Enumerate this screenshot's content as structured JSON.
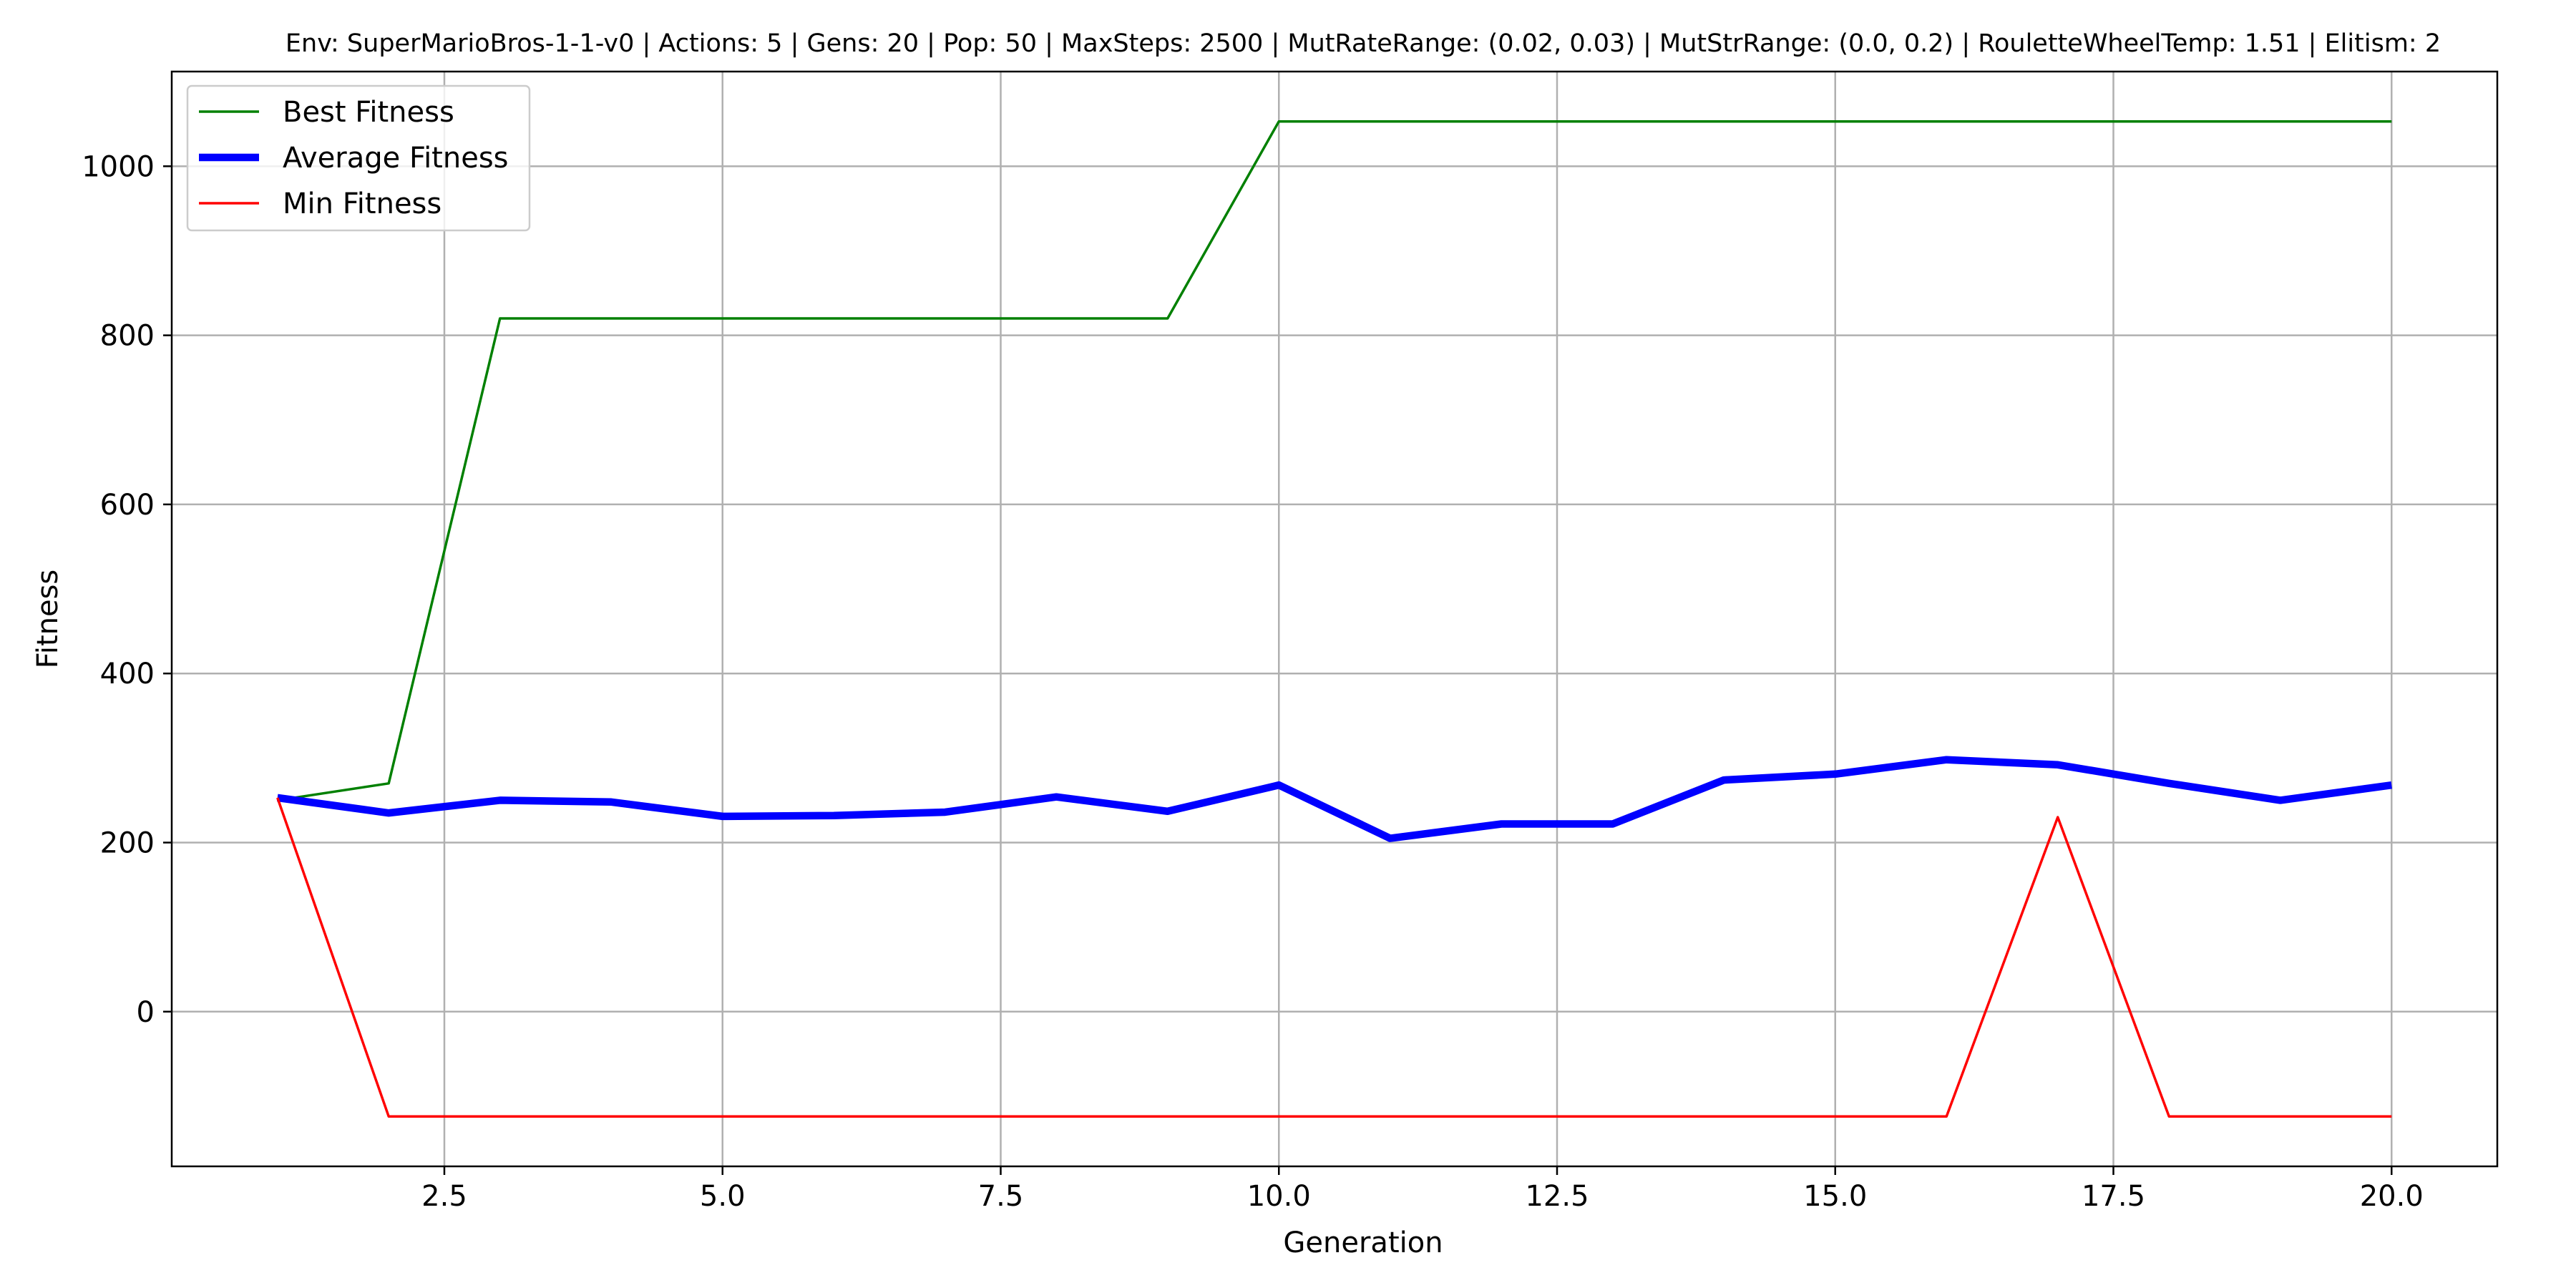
{
  "chart_data": {
    "type": "line",
    "title": "Env: SuperMarioBros-1-1-v0 | Actions: 5 | Gens: 20 | Pop: 50 | MaxSteps: 2500 | MutRateRange: (0.02, 0.03) | MutStrRange: (0.0, 0.2) | RouletteWheelTemp: 1.51 | Elitism: 2",
    "xlabel": "Generation",
    "ylabel": "Fitness",
    "xlim": [
      0.05,
      20.95
    ],
    "ylim": [
      -183,
      1112
    ],
    "grid": true,
    "legend_position": "top-left",
    "xticks": [
      {
        "value": 2.5,
        "label": "2.5"
      },
      {
        "value": 5.0,
        "label": "5.0"
      },
      {
        "value": 7.5,
        "label": "7.5"
      },
      {
        "value": 10.0,
        "label": "10.0"
      },
      {
        "value": 12.5,
        "label": "12.5"
      },
      {
        "value": 15.0,
        "label": "15.0"
      },
      {
        "value": 17.5,
        "label": "17.5"
      },
      {
        "value": 20.0,
        "label": "20.0"
      }
    ],
    "yticks": [
      {
        "value": 0,
        "label": "0"
      },
      {
        "value": 200,
        "label": "200"
      },
      {
        "value": 400,
        "label": "400"
      },
      {
        "value": 600,
        "label": "600"
      },
      {
        "value": 800,
        "label": "800"
      },
      {
        "value": 1000,
        "label": "1000"
      }
    ],
    "x": [
      1,
      2,
      3,
      4,
      5,
      6,
      7,
      8,
      9,
      10,
      11,
      12,
      13,
      14,
      15,
      16,
      17,
      18,
      19,
      20
    ],
    "series": [
      {
        "name": "Best Fitness",
        "color": "#008000",
        "width": 3.5,
        "values": [
          250,
          270,
          820,
          820,
          820,
          820,
          820,
          820,
          820,
          1053,
          1053,
          1053,
          1053,
          1053,
          1053,
          1053,
          1053,
          1053,
          1053,
          1053
        ]
      },
      {
        "name": "Average Fitness",
        "color": "#0000ff",
        "width": 10.5,
        "values": [
          253,
          235,
          250,
          248,
          231,
          232,
          236,
          254,
          237,
          268,
          205,
          222,
          222,
          274,
          281,
          298,
          292,
          270,
          250,
          268
        ]
      },
      {
        "name": "Min Fitness",
        "color": "#ff0000",
        "width": 3.5,
        "values": [
          253,
          -124,
          -124,
          -124,
          -124,
          -124,
          -124,
          -124,
          -124,
          -124,
          -124,
          -124,
          -124,
          -124,
          -124,
          -124,
          230,
          -124,
          -124,
          -124
        ]
      }
    ]
  }
}
